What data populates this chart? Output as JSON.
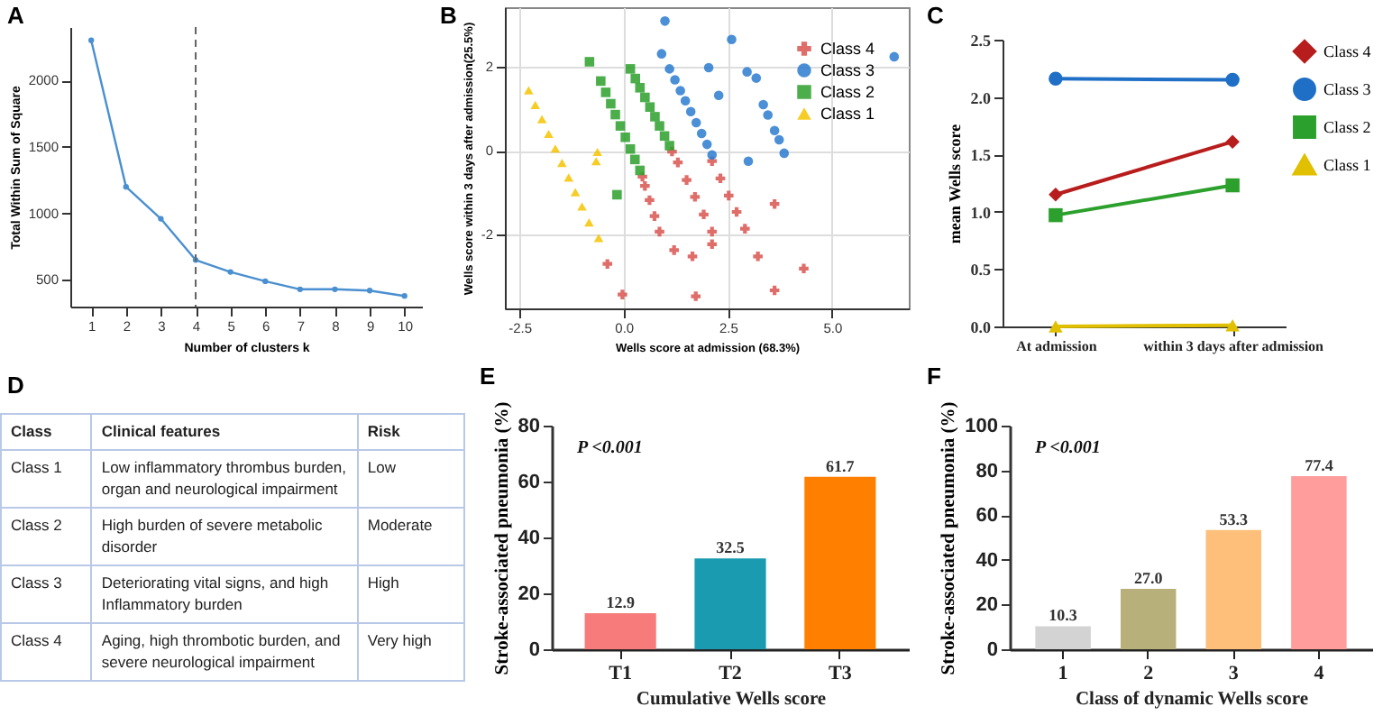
{
  "chart_data": [
    {
      "type": "line",
      "title": "A",
      "xlabel": "Number of clusters k",
      "ylabel": "Total Within Sum of Square",
      "x": [
        1,
        2,
        3,
        4,
        5,
        6,
        7,
        8,
        9,
        10
      ],
      "values": [
        2300,
        1200,
        960,
        650,
        560,
        490,
        430,
        430,
        420,
        380
      ],
      "color": "#4a8fd0",
      "marker": "circle",
      "xlim": [
        0.4,
        10.5
      ],
      "xticks": [
        1,
        2,
        3,
        4,
        5,
        6,
        7,
        8,
        9,
        10
      ],
      "ylim": [
        300,
        2400
      ],
      "yticks": [
        500,
        1000,
        1500,
        2000
      ],
      "ref_lines": [
        {
          "axis": "x",
          "value": 4,
          "color": "#666666",
          "line_style": "dashed"
        }
      ]
    },
    {
      "type": "scatter",
      "title": "B",
      "xlabel": "Wells score at admission (68.3%)",
      "ylabel": "Wells score within 3 days after admission(25.5%)",
      "xlim": [
        -2.85,
        6.84
      ],
      "xticks": [
        {
          "value": -2.5,
          "label": "-2.5"
        },
        {
          "value": 0,
          "label": "0.0"
        },
        {
          "value": 2.5,
          "label": "2.5"
        },
        {
          "value": 5,
          "label": "5.0"
        }
      ],
      "ylim": [
        -3.76,
        3.42
      ],
      "yticks": [
        -2,
        0,
        2
      ],
      "grid": true,
      "legend": "top right",
      "series": [
        {
          "name": "Class 4",
          "color": "#d9534f",
          "marker": "cross",
          "x": [
            0.45,
            0.51,
            0.62,
            0.74,
            0.86,
            1.16,
            1.3,
            1.51,
            1.71,
            1.92,
            2.12,
            2.12,
            2.32,
            2.52,
            2.71,
            2.91,
            -0.39,
            -0.03,
            1.65,
            1.73,
            2.12,
            3.22,
            3.62,
            3.62,
            4.32,
            1.21
          ],
          "values": [
            -0.62,
            -0.84,
            -1.18,
            -1.56,
            -1.93,
            -0.02,
            -0.28,
            -0.7,
            -1.1,
            -1.52,
            -1.93,
            -0.25,
            -0.66,
            -1.07,
            -1.46,
            -1.86,
            -2.7,
            -3.43,
            -2.52,
            -3.47,
            -2.23,
            -2.52,
            -1.27,
            -3.33,
            -2.81,
            -2.37
          ]
        },
        {
          "name": "Class 3",
          "color": "#2b7bd0",
          "marker": "circle",
          "x": [
            1.1,
            1.23,
            1.36,
            1.48,
            1.61,
            1.74,
            1.87,
            2.0,
            2.12,
            0.99,
            0.91,
            2.59,
            2.04,
            2.28,
            2.96,
            3.18,
            3.35,
            3.46,
            3.62,
            3.73,
            3.85,
            2.99,
            6.49
          ],
          "values": [
            1.95,
            1.69,
            1.43,
            1.19,
            0.93,
            0.67,
            0.41,
            0.15,
            -0.1,
            3.09,
            2.31,
            2.65,
            1.98,
            1.32,
            1.88,
            1.73,
            1.1,
            0.85,
            0.48,
            0.26,
            -0.06,
            -0.25,
            2.24
          ]
        },
        {
          "name": "Class 2",
          "color": "#2ca02c",
          "marker": "square",
          "x": [
            -0.55,
            -0.43,
            -0.31,
            -0.2,
            -0.08,
            0.04,
            0.16,
            0.27,
            0.39,
            0.16,
            0.28,
            0.39,
            0.51,
            0.63,
            0.75,
            0.86,
            0.98,
            1.1,
            -0.82,
            -0.16
          ],
          "values": [
            1.66,
            1.39,
            1.12,
            0.86,
            0.59,
            0.32,
            0.04,
            -0.21,
            -0.47,
            1.95,
            1.72,
            1.5,
            1.27,
            1.04,
            0.81,
            0.59,
            0.35,
            0.12,
            2.12,
            -1.05
          ]
        },
        {
          "name": "Class 1",
          "color": "#f5c400",
          "marker": "triangle",
          "x": [
            -2.28,
            -2.12,
            -1.96,
            -1.8,
            -1.64,
            -1.48,
            -1.32,
            -1.16,
            -1.0,
            -0.83,
            -0.66,
            -0.63,
            -0.6
          ],
          "values": [
            1.44,
            1.09,
            0.75,
            0.4,
            0.05,
            -0.29,
            -0.64,
            -0.99,
            -1.33,
            -1.71,
            -0.25,
            -0.03,
            -2.08
          ]
        }
      ]
    },
    {
      "type": "line",
      "title": "C",
      "ylabel": "mean Wells score",
      "categories": [
        "At admission",
        "within 3 days after admission"
      ],
      "ylim": [
        0,
        2.5
      ],
      "yticks": [
        {
          "value": 0,
          "label": "0.0"
        },
        {
          "value": 0.5,
          "label": "0.5"
        },
        {
          "value": 1,
          "label": "1.0"
        },
        {
          "value": 1.5,
          "label": "1.5"
        },
        {
          "value": 2,
          "label": "2.0"
        },
        {
          "value": 2.5,
          "label": "2.5"
        }
      ],
      "legend": "right",
      "series": [
        {
          "name": "Class 4",
          "color": "#b81d1d",
          "marker": "diamond",
          "values": [
            1.15,
            1.61
          ]
        },
        {
          "name": "Class 3",
          "color": "#1f6fc6",
          "marker": "circle",
          "values": [
            2.16,
            2.15
          ]
        },
        {
          "name": "Class 2",
          "color": "#2ca02c",
          "marker": "square",
          "values": [
            0.97,
            1.23
          ]
        },
        {
          "name": "Class 1",
          "color": "#e0c000",
          "marker": "triangle",
          "values": [
            0.0,
            0.01
          ]
        }
      ]
    },
    {
      "type": "other",
      "title": "D",
      "categories": [
        "Class",
        "Clinical features",
        "Risk"
      ],
      "y_categories": [
        "Class 1",
        "Class 2",
        "Class 3",
        "Class 4"
      ],
      "cell_labels": [
        [
          "Low inflammatory thrombus burden, organ and neurological impairment",
          "Low"
        ],
        [
          "High burden of severe metabolic disorder",
          "Moderate"
        ],
        [
          "Deteriorating vital signs, and high Inflammatory burden",
          "High"
        ],
        [
          "Aging, high thrombotic burden, and severe neurological impairment",
          "Very high"
        ]
      ]
    },
    {
      "type": "bar",
      "title": "E",
      "xlabel": "Cumulative Wells score",
      "ylabel": "Stroke-associated pneumonia (%)",
      "categories": [
        "T1",
        "T2",
        "T3"
      ],
      "values": [
        12.9,
        32.5,
        61.7
      ],
      "colors": [
        "#f77b7b",
        "#1a9bb0",
        "#ff8000"
      ],
      "ylim": [
        0,
        80
      ],
      "yticks": [
        0,
        20,
        40,
        60,
        80
      ],
      "data_labels": true,
      "annotations": [
        "P <0.001"
      ]
    },
    {
      "type": "bar",
      "title": "F",
      "xlabel": "Class of dynamic Wells score",
      "ylabel": "Stroke-associated pneumonia (%)",
      "categories": [
        "1",
        "2",
        "3",
        "4"
      ],
      "values": [
        10.3,
        27.0,
        53.3,
        77.4
      ],
      "colors": [
        "#d3d3d3",
        "#b8b07a",
        "#fdbf7a",
        "#ff9c9c"
      ],
      "ylim": [
        0,
        100
      ],
      "yticks": [
        0,
        20,
        40,
        60,
        80,
        100
      ],
      "value_labels": [
        "10.3",
        "27.0",
        "53.3",
        "77.4"
      ],
      "annotations": [
        "P <0.001"
      ]
    }
  ]
}
